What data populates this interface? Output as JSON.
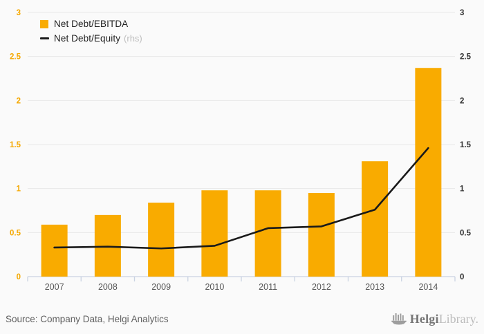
{
  "chart_data": {
    "type": "bar",
    "subtype": "combo-bar-line",
    "title": "",
    "categories": [
      "2007",
      "2008",
      "2009",
      "2010",
      "2011",
      "2012",
      "2013",
      "2014"
    ],
    "series": [
      {
        "name": "Net Debt/EBITDA",
        "type": "bar",
        "axis": "left",
        "color": "#f9ab00",
        "values": [
          0.59,
          0.7,
          0.84,
          0.98,
          0.98,
          0.95,
          1.31,
          2.37
        ]
      },
      {
        "name": "Net Debt/Equity",
        "type": "line",
        "axis": "right",
        "suffix": "(rhs)",
        "color": "#1a1a1a",
        "values": [
          0.33,
          0.34,
          0.32,
          0.35,
          0.55,
          0.57,
          0.76,
          1.46
        ]
      }
    ],
    "left_axis": {
      "min": 0,
      "max": 3,
      "step": 0.5,
      "ticks": [
        "0",
        "0.5",
        "1",
        "1.5",
        "2",
        "2.5",
        "3"
      ],
      "label_color": "#f5a800"
    },
    "right_axis": {
      "min": 0,
      "max": 3,
      "step": 0.5,
      "ticks": [
        "0",
        "0.5",
        "1",
        "1.5",
        "2",
        "2.5",
        "3"
      ],
      "label_color": "#333333"
    },
    "grid": true,
    "legend_position": "top-left",
    "xlabel": "",
    "ylabel": ""
  },
  "legend": {
    "items": [
      {
        "label": "Net Debt/EBITDA",
        "suffix": "",
        "swatch": "square",
        "color": "#f9ab00"
      },
      {
        "label": "Net Debt/Equity",
        "suffix": "(rhs)",
        "swatch": "line",
        "color": "#1a1a1a"
      }
    ]
  },
  "footer": {
    "source": "Source: Company Data, Helgi Analytics",
    "logo": {
      "brand": "Helgi",
      "suffix": "Library."
    }
  },
  "colors": {
    "background": "#fafafa",
    "gridline": "#e8e8e8",
    "axis_line": "#c9d2e2",
    "year_label": "#555555",
    "bar": "#f9ab00",
    "line": "#1a1a1a"
  }
}
